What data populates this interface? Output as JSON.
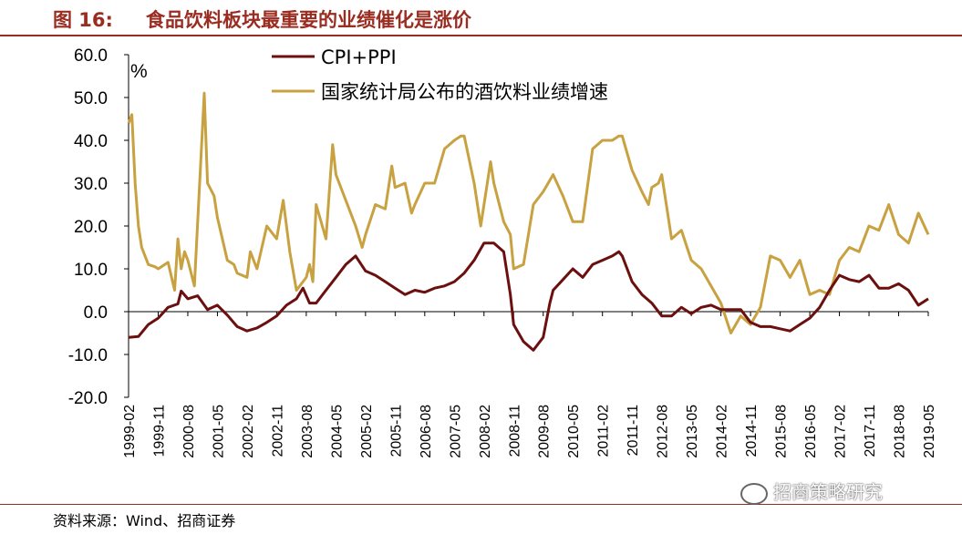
{
  "header": {
    "figure_label": "图 16:",
    "title": "食品饮料板块最重要的业绩催化是涨价"
  },
  "source": "资料来源：Wind、招商证券",
  "watermark": "招商策略研究",
  "chart_data": {
    "type": "line",
    "title": "食品饮料板块最重要的业绩催化是涨价",
    "ylabel": "%",
    "ylim": [
      -20,
      60
    ],
    "yticks": [
      "60.0",
      "50.0",
      "40.0",
      "30.0",
      "20.0",
      "10.0",
      "0.0",
      "-10.0",
      "-20.0"
    ],
    "ytick_values": [
      60,
      50,
      40,
      30,
      20,
      10,
      0,
      -10,
      -20
    ],
    "x_start": "1999-02",
    "x_end": "2019-05",
    "xticks": [
      "1999-02",
      "1999-11",
      "2000-08",
      "2001-05",
      "2002-02",
      "2002-11",
      "2003-08",
      "2004-05",
      "2005-02",
      "2005-11",
      "2006-08",
      "2007-05",
      "2008-02",
      "2008-11",
      "2009-08",
      "2010-05",
      "2011-02",
      "2011-11",
      "2012-08",
      "2013-05",
      "2014-02",
      "2014-11",
      "2015-08",
      "2016-05",
      "2017-02",
      "2017-11",
      "2018-08",
      "2019-05"
    ],
    "legend_position": "top",
    "series": [
      {
        "name": "CPI+PPI",
        "color": "#6b0f0f",
        "points": [
          [
            "1999-02",
            -6
          ],
          [
            "1999-05",
            -5.8
          ],
          [
            "1999-08",
            -3
          ],
          [
            "1999-11",
            -1.5
          ],
          [
            "2000-02",
            1
          ],
          [
            "2000-05",
            1.8
          ],
          [
            "2000-06",
            4.8
          ],
          [
            "2000-08",
            3
          ],
          [
            "2000-11",
            3.7
          ],
          [
            "2001-02",
            0.5
          ],
          [
            "2001-05",
            1.5
          ],
          [
            "2001-08",
            -0.8
          ],
          [
            "2001-11",
            -3.5
          ],
          [
            "2002-02",
            -4.5
          ],
          [
            "2002-05",
            -3.8
          ],
          [
            "2002-08",
            -2.5
          ],
          [
            "2002-11",
            -1
          ],
          [
            "2003-02",
            1.5
          ],
          [
            "2003-05",
            3
          ],
          [
            "2003-07",
            5.5
          ],
          [
            "2003-09",
            2
          ],
          [
            "2003-11",
            2
          ],
          [
            "2004-02",
            5
          ],
          [
            "2004-05",
            8
          ],
          [
            "2004-08",
            11
          ],
          [
            "2004-11",
            13
          ],
          [
            "2005-02",
            9.5
          ],
          [
            "2005-05",
            8.5
          ],
          [
            "2005-08",
            7
          ],
          [
            "2005-11",
            5.5
          ],
          [
            "2006-02",
            4
          ],
          [
            "2006-05",
            5
          ],
          [
            "2006-08",
            4.5
          ],
          [
            "2006-11",
            5.5
          ],
          [
            "2007-02",
            6
          ],
          [
            "2007-05",
            7
          ],
          [
            "2007-08",
            9
          ],
          [
            "2007-11",
            12
          ],
          [
            "2008-02",
            16
          ],
          [
            "2008-05",
            16
          ],
          [
            "2008-08",
            14
          ],
          [
            "2008-10",
            4
          ],
          [
            "2008-11",
            -3
          ],
          [
            "2009-02",
            -7
          ],
          [
            "2009-05",
            -9
          ],
          [
            "2009-08",
            -6
          ],
          [
            "2009-10",
            2
          ],
          [
            "2009-11",
            5
          ],
          [
            "2010-02",
            7.5
          ],
          [
            "2010-05",
            10
          ],
          [
            "2010-08",
            8
          ],
          [
            "2010-11",
            11
          ],
          [
            "2011-02",
            12
          ],
          [
            "2011-05",
            13
          ],
          [
            "2011-07",
            14
          ],
          [
            "2011-08",
            13
          ],
          [
            "2011-11",
            7
          ],
          [
            "2012-02",
            4
          ],
          [
            "2012-05",
            2
          ],
          [
            "2012-08",
            -1
          ],
          [
            "2012-11",
            -1
          ],
          [
            "2013-02",
            1
          ],
          [
            "2013-05",
            -0.5
          ],
          [
            "2013-08",
            1
          ],
          [
            "2013-11",
            1.5
          ],
          [
            "2014-02",
            0.5
          ],
          [
            "2014-05",
            0.5
          ],
          [
            "2014-08",
            0.5
          ],
          [
            "2014-11",
            -2.5
          ],
          [
            "2015-02",
            -3.5
          ],
          [
            "2015-05",
            -3.5
          ],
          [
            "2015-08",
            -4
          ],
          [
            "2015-11",
            -4.5
          ],
          [
            "2016-02",
            -3
          ],
          [
            "2016-05",
            -1.5
          ],
          [
            "2016-08",
            1
          ],
          [
            "2016-11",
            5
          ],
          [
            "2017-02",
            8.5
          ],
          [
            "2017-05",
            7.5
          ],
          [
            "2017-08",
            7
          ],
          [
            "2017-11",
            8.5
          ],
          [
            "2018-02",
            5.5
          ],
          [
            "2018-05",
            5.5
          ],
          [
            "2018-08",
            6.5
          ],
          [
            "2018-11",
            5
          ],
          [
            "2019-02",
            1.5
          ],
          [
            "2019-05",
            3
          ]
        ]
      },
      {
        "name": "国家统计局公布的酒饮料业绩增速",
        "color": "#c8a140",
        "points": [
          [
            "1999-02",
            44
          ],
          [
            "1999-03",
            46
          ],
          [
            "1999-04",
            30
          ],
          [
            "1999-05",
            20
          ],
          [
            "1999-06",
            15
          ],
          [
            "1999-08",
            11
          ],
          [
            "1999-10",
            10.5
          ],
          [
            "1999-11",
            10
          ],
          [
            "2000-02",
            11.5
          ],
          [
            "2000-04",
            5
          ],
          [
            "2000-05",
            17
          ],
          [
            "2000-06",
            10
          ],
          [
            "2000-07",
            14
          ],
          [
            "2000-08",
            12
          ],
          [
            "2000-10",
            6
          ],
          [
            "2001-01",
            51
          ],
          [
            "2001-02",
            30
          ],
          [
            "2001-04",
            27
          ],
          [
            "2001-05",
            22
          ],
          [
            "2001-08",
            12
          ],
          [
            "2001-10",
            11
          ],
          [
            "2001-11",
            9
          ],
          [
            "2002-02",
            8
          ],
          [
            "2002-03",
            14
          ],
          [
            "2002-05",
            10
          ],
          [
            "2002-08",
            20
          ],
          [
            "2002-11",
            17
          ],
          [
            "2003-01",
            26
          ],
          [
            "2003-03",
            14
          ],
          [
            "2003-05",
            5
          ],
          [
            "2003-08",
            8
          ],
          [
            "2003-09",
            11
          ],
          [
            "2003-10",
            7
          ],
          [
            "2003-11",
            25
          ],
          [
            "2004-02",
            17
          ],
          [
            "2004-04",
            39
          ],
          [
            "2004-05",
            32
          ],
          [
            "2004-08",
            26
          ],
          [
            "2004-11",
            20
          ],
          [
            "2005-01",
            15
          ],
          [
            "2005-02",
            18
          ],
          [
            "2005-05",
            25
          ],
          [
            "2005-08",
            24
          ],
          [
            "2005-10",
            34
          ],
          [
            "2005-11",
            29
          ],
          [
            "2006-02",
            30
          ],
          [
            "2006-04",
            23
          ],
          [
            "2006-05",
            25
          ],
          [
            "2006-08",
            30
          ],
          [
            "2006-11",
            30
          ],
          [
            "2007-02",
            38
          ],
          [
            "2007-05",
            40
          ],
          [
            "2007-07",
            41
          ],
          [
            "2007-08",
            41
          ],
          [
            "2007-11",
            30
          ],
          [
            "2008-01",
            20
          ],
          [
            "2008-02",
            25
          ],
          [
            "2008-04",
            35
          ],
          [
            "2008-05",
            30
          ],
          [
            "2008-08",
            21
          ],
          [
            "2008-10",
            18
          ],
          [
            "2008-11",
            10
          ],
          [
            "2009-02",
            11
          ],
          [
            "2009-05",
            25
          ],
          [
            "2009-08",
            28
          ],
          [
            "2009-11",
            32
          ],
          [
            "2010-02",
            27
          ],
          [
            "2010-05",
            21
          ],
          [
            "2010-08",
            21
          ],
          [
            "2010-11",
            38
          ],
          [
            "2011-02",
            40
          ],
          [
            "2011-05",
            40
          ],
          [
            "2011-07",
            41
          ],
          [
            "2011-08",
            41
          ],
          [
            "2011-11",
            33
          ],
          [
            "2012-02",
            28
          ],
          [
            "2012-04",
            25
          ],
          [
            "2012-05",
            29
          ],
          [
            "2012-07",
            30
          ],
          [
            "2012-08",
            32
          ],
          [
            "2012-11",
            17
          ],
          [
            "2013-02",
            19
          ],
          [
            "2013-05",
            12
          ],
          [
            "2013-08",
            10
          ],
          [
            "2013-11",
            6
          ],
          [
            "2014-02",
            2
          ],
          [
            "2014-05",
            -5
          ],
          [
            "2014-08",
            -1
          ],
          [
            "2014-11",
            -3
          ],
          [
            "2015-02",
            1
          ],
          [
            "2015-05",
            13
          ],
          [
            "2015-08",
            12
          ],
          [
            "2015-11",
            8
          ],
          [
            "2016-02",
            12
          ],
          [
            "2016-05",
            4
          ],
          [
            "2016-08",
            5
          ],
          [
            "2016-11",
            4
          ],
          [
            "2017-02",
            12
          ],
          [
            "2017-05",
            15
          ],
          [
            "2017-08",
            14
          ],
          [
            "2017-11",
            20
          ],
          [
            "2018-02",
            19
          ],
          [
            "2018-05",
            25
          ],
          [
            "2018-08",
            18
          ],
          [
            "2018-11",
            16
          ],
          [
            "2019-02",
            23
          ],
          [
            "2019-05",
            18
          ]
        ]
      }
    ]
  }
}
